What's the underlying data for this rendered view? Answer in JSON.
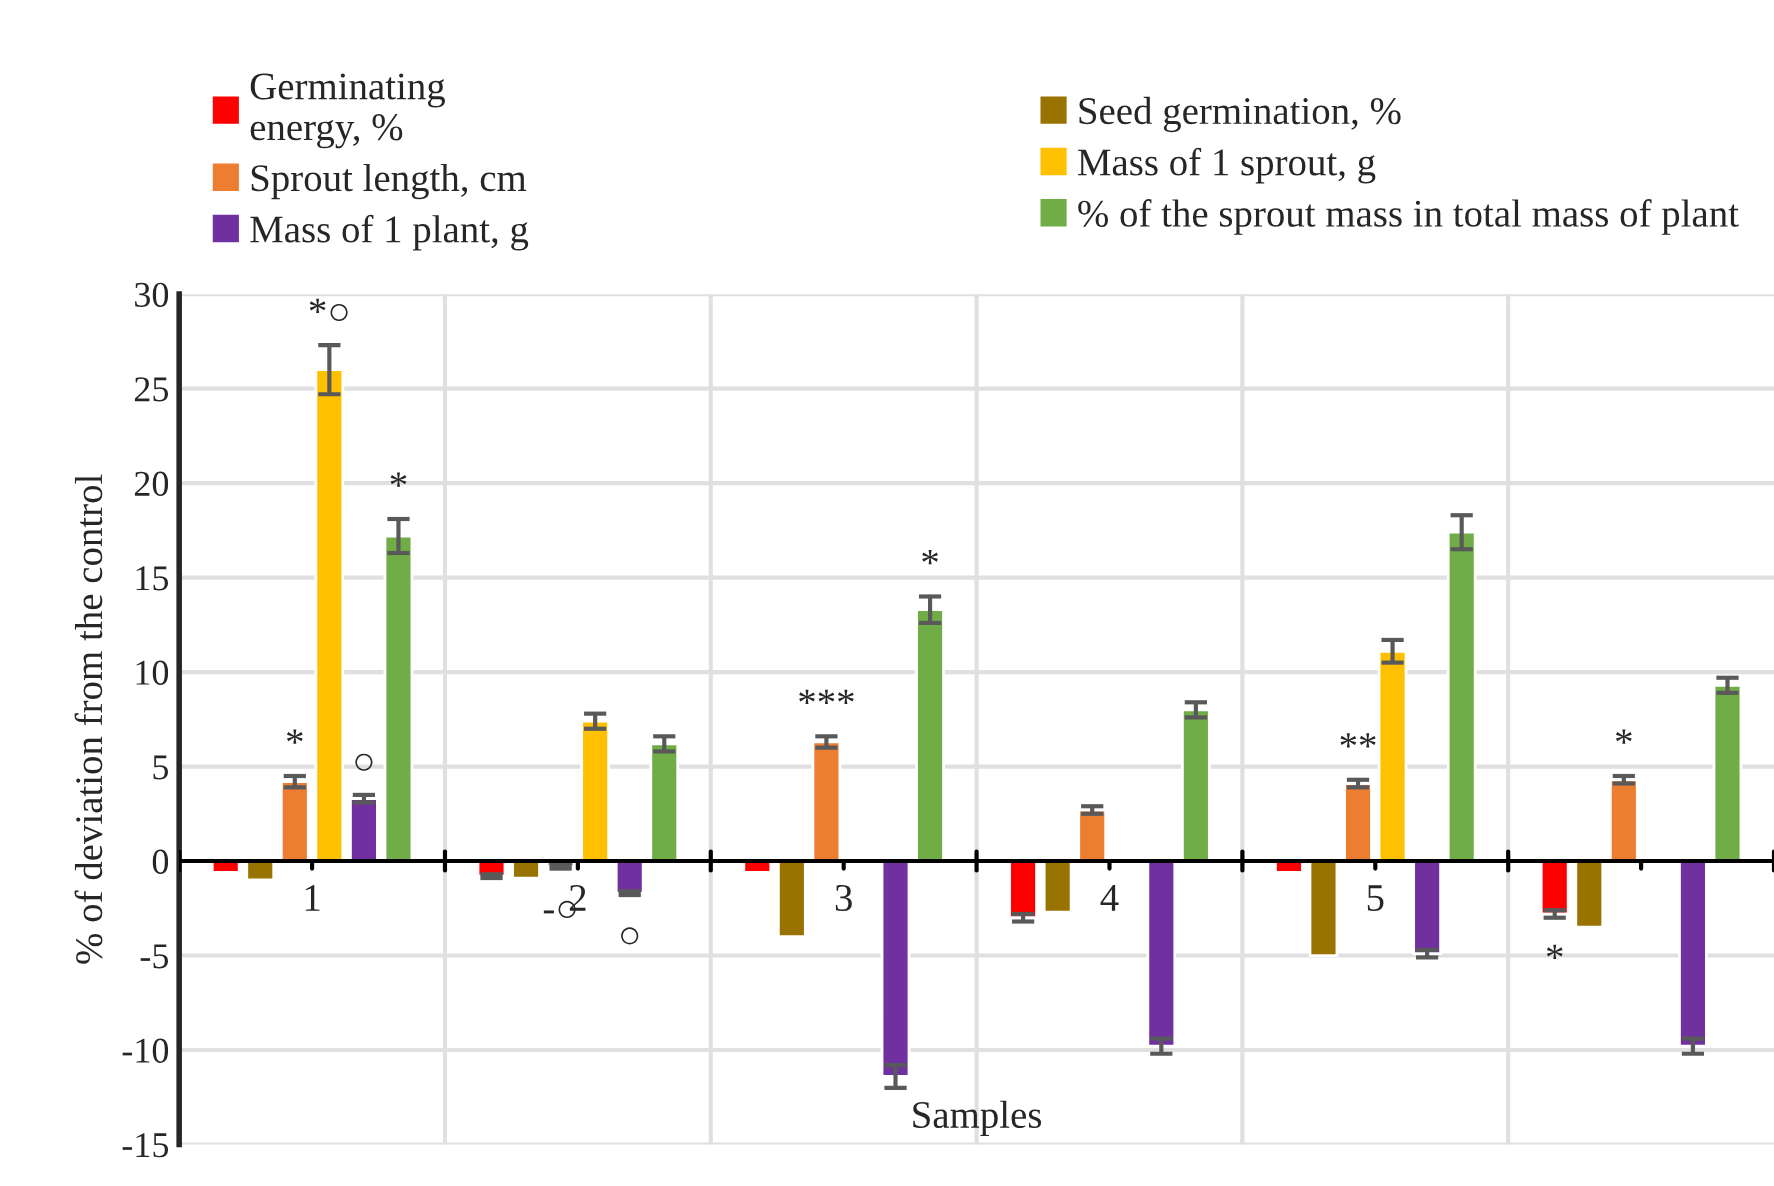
{
  "chart_data": {
    "type": "bar",
    "xlabel": "Samples",
    "ylabel": "% of deviation from the control",
    "categories": [
      "1",
      "2",
      "3",
      "4",
      "5",
      null
    ],
    "series": [
      {
        "name": "Germinating\nenergy, %",
        "color": "#ff0000",
        "values": [
          -0.6,
          -0.8,
          -0.6,
          -3.0,
          -0.6,
          -2.8
        ],
        "errors": [
          null,
          0.1,
          null,
          0.2,
          null,
          0.2
        ],
        "value_labels": [
          null,
          null,
          null,
          null,
          null,
          "*"
        ]
      },
      {
        "name": "Seed germination, %",
        "color": "#997300",
        "values": [
          -1.0,
          -0.9,
          -4.0,
          -2.7,
          -5.0,
          -3.5
        ]
      },
      {
        "name": "Sprout length, cm",
        "color": "#ed7d31",
        "values": [
          4.2,
          -0.3,
          6.3,
          2.7,
          4.1,
          4.3
        ],
        "errors": [
          0.3,
          0.1,
          0.3,
          0.2,
          0.2,
          0.2
        ],
        "value_labels": [
          "*",
          "-○",
          "***",
          null,
          "**",
          "*"
        ]
      },
      {
        "name": "Mass of 1 sprout, g",
        "color": "#ffc000",
        "values": [
          26.0,
          7.4,
          null,
          null,
          11.1,
          null
        ],
        "errors": [
          1.3,
          0.4,
          null,
          null,
          0.6,
          null
        ],
        "value_labels": [
          "*○",
          null,
          null,
          null,
          null,
          null
        ]
      },
      {
        "name": "Mass of 1 plant, g",
        "color": "#7030a0",
        "values": [
          3.3,
          -1.7,
          -11.4,
          -9.8,
          -4.9,
          -9.8
        ],
        "errors": [
          0.2,
          0.1,
          0.6,
          0.4,
          0.2,
          0.4
        ],
        "value_labels": [
          "○",
          "○",
          null,
          null,
          null,
          null
        ]
      },
      {
        "name": "% of the sprout mass in total mass of plant",
        "color": "#70ad47",
        "values": [
          17.2,
          6.2,
          13.3,
          8.0,
          17.4,
          9.3
        ],
        "errors": [
          0.9,
          0.4,
          0.7,
          0.4,
          0.9,
          0.4
        ],
        "value_labels": [
          "*",
          null,
          "*",
          null,
          null,
          null
        ]
      }
    ],
    "ylim": [
      -15,
      30
    ],
    "yticks": [
      -15,
      -10,
      -5,
      0,
      5,
      10,
      15,
      20,
      25,
      30
    ],
    "grid": true,
    "legend": "top"
  }
}
